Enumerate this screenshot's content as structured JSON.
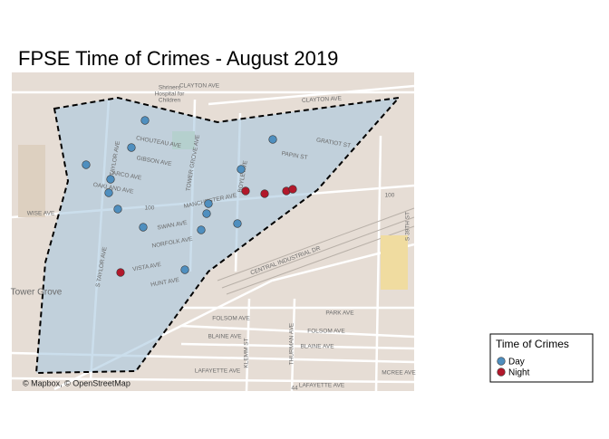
{
  "title": "FPSE Time of Crimes - August 2019",
  "legend": {
    "title": "Time of Crimes",
    "items": [
      {
        "label": "Day",
        "color": "#4f8fbf"
      },
      {
        "label": "Night",
        "color": "#b2182b"
      }
    ]
  },
  "map": {
    "labels": [
      "CLAYTON AVE",
      "CLAYTON AVE",
      "Shriners",
      "Hospital for",
      "Children",
      "CHOUTEAU AVE",
      "GIBSON AVE",
      "ARCO AVE",
      "OAKLAND AVE",
      "WISE AVE",
      "MANCHESTER AVE",
      "SWAN AVE",
      "NORFOLK AVE",
      "VISTA AVE",
      "HUNT AVE",
      "TAYLOR AVE",
      "S TAYLOR AVE",
      "TOWER GROVE AVE",
      "BOYLE AVE",
      "PAPIN ST",
      "GRATIOT ST",
      "CENTRAL INDUSTRIAL DR",
      "PARK AVE",
      "FOLSOM AVE",
      "FOLSOM AVE",
      "BLAINE AVE",
      "BLAINE AVE",
      "LAFAYETTE AVE",
      "LAFAYETTE AVE",
      "MCREE AVE",
      "KLEMM ST",
      "THURMAN AVE",
      "S 39TH ST",
      "Tower Grove",
      "100",
      "100",
      "44"
    ],
    "attribution": "© Mapbox, © OpenStreetMap"
  }
}
